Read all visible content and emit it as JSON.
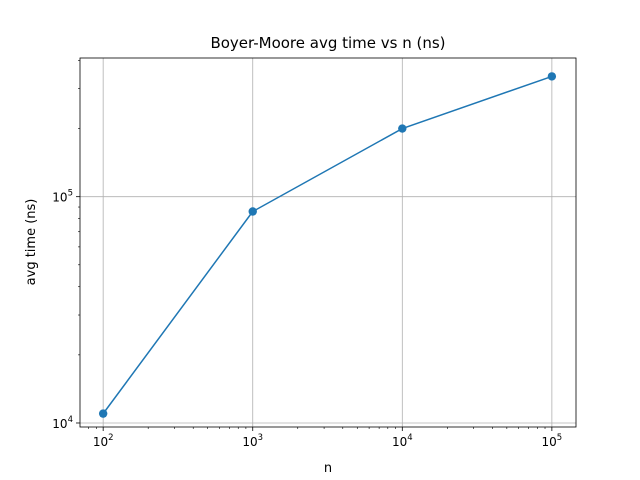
{
  "chart_data": {
    "type": "line",
    "title": "Boyer-Moore avg time vs n (ns)",
    "xlabel": "n",
    "ylabel": "avg time (ns)",
    "xscale": "log",
    "yscale": "log",
    "grid": true,
    "xlim": [
      70,
      145000
    ],
    "ylim": [
      9600,
      410000
    ],
    "x_ticks": [
      {
        "base": "10",
        "exp": "2",
        "value": 100
      },
      {
        "base": "10",
        "exp": "3",
        "value": 1000
      },
      {
        "base": "10",
        "exp": "4",
        "value": 10000
      },
      {
        "base": "10",
        "exp": "5",
        "value": 100000
      }
    ],
    "y_ticks": [
      {
        "base": "10",
        "exp": "4",
        "value": 10000
      },
      {
        "base": "10",
        "exp": "5",
        "value": 100000
      }
    ],
    "series": [
      {
        "color": "#1f77b4",
        "marker": "circle",
        "x": [
          100,
          1000,
          10000,
          100000
        ],
        "y": [
          11000,
          86000,
          200000,
          340000
        ]
      }
    ]
  }
}
